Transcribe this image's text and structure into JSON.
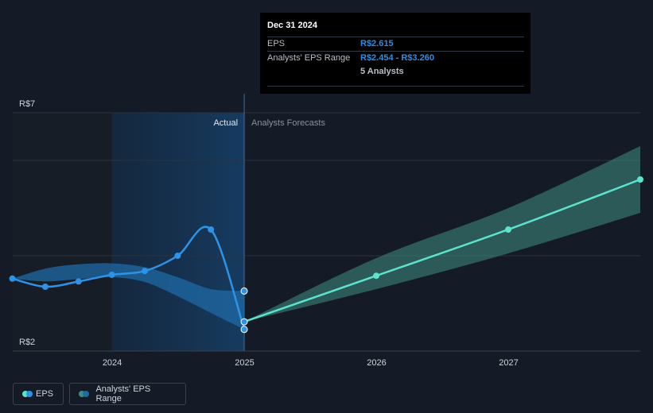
{
  "chart_data": {
    "type": "line",
    "y_axis": {
      "min": 2,
      "max": 7,
      "labels": [
        "R$7",
        "R$2"
      ],
      "grid": true
    },
    "x_axis": {
      "min": "2023-04-01",
      "max": "2027-12-31",
      "ticks": [
        "2024",
        "2025",
        "2026",
        "2027"
      ]
    },
    "divider": {
      "date": "2024-12-31",
      "left_label": "Actual",
      "right_label": "Analysts Forecasts"
    },
    "series": [
      {
        "name": "EPS",
        "kind": "actual",
        "points": [
          {
            "x": "2023-03-31",
            "y": 3.52
          },
          {
            "x": "2023-06-30",
            "y": 3.35
          },
          {
            "x": "2023-09-30",
            "y": 3.46
          },
          {
            "x": "2023-12-31",
            "y": 3.6
          },
          {
            "x": "2024-03-31",
            "y": 3.68
          },
          {
            "x": "2024-06-30",
            "y": 4.0
          },
          {
            "x": "2024-09-30",
            "y": 4.55
          },
          {
            "x": "2024-12-31",
            "y": 2.454
          }
        ]
      },
      {
        "name": "Analysts' EPS Range",
        "kind": "historic-range",
        "points": [
          {
            "x": "2023-03-31",
            "low": 3.52,
            "high": 3.52
          },
          {
            "x": "2023-06-30",
            "low": 3.46,
            "high": 3.73
          },
          {
            "x": "2023-09-30",
            "low": 3.51,
            "high": 3.82
          },
          {
            "x": "2023-12-31",
            "low": 3.55,
            "high": 3.84
          },
          {
            "x": "2024-03-31",
            "low": 3.45,
            "high": 3.76
          },
          {
            "x": "2024-06-30",
            "low": 3.15,
            "high": 3.55
          },
          {
            "x": "2024-09-30",
            "low": 2.8,
            "high": 3.3
          },
          {
            "x": "2024-12-31",
            "low": 2.454,
            "high": 3.26
          }
        ]
      },
      {
        "name": "EPS",
        "kind": "forecast",
        "points": [
          {
            "x": "2024-12-31",
            "y": 2.615
          },
          {
            "x": "2025-12-31",
            "y": 3.58
          },
          {
            "x": "2026-12-31",
            "y": 4.55
          },
          {
            "x": "2027-12-31",
            "y": 5.6
          }
        ]
      },
      {
        "name": "Analysts' EPS Range",
        "kind": "forecast-range",
        "points": [
          {
            "x": "2024-12-31",
            "low": 2.615,
            "high": 2.615
          },
          {
            "x": "2025-12-31",
            "low": 3.3,
            "high": 3.95
          },
          {
            "x": "2026-12-31",
            "low": 4.05,
            "high": 5.0
          },
          {
            "x": "2027-12-31",
            "low": 4.9,
            "high": 6.3
          }
        ]
      }
    ],
    "markers": [
      {
        "x": "2024-12-31",
        "y": 3.26
      },
      {
        "x": "2024-12-31",
        "y": 2.615
      },
      {
        "x": "2024-12-31",
        "y": 2.454
      }
    ],
    "colors": {
      "eps_actual": "#2e93e6",
      "eps_forecast": "#5de3cd",
      "range_actual": "#1f6aa5",
      "range_forecast": "#3e8e82",
      "highlight_band": "#173a5a",
      "grid": "#2c333e"
    },
    "legend": {
      "placement": "bottom-left",
      "items": [
        "EPS",
        "Analysts' EPS Range"
      ]
    }
  },
  "tooltip": {
    "date": "Dec 31 2024",
    "eps_label": "EPS",
    "eps_value": "R$2.615",
    "range_label": "Analysts' EPS Range",
    "range_value": "R$2.454 - R$3.260",
    "analysts": "5 Analysts"
  }
}
